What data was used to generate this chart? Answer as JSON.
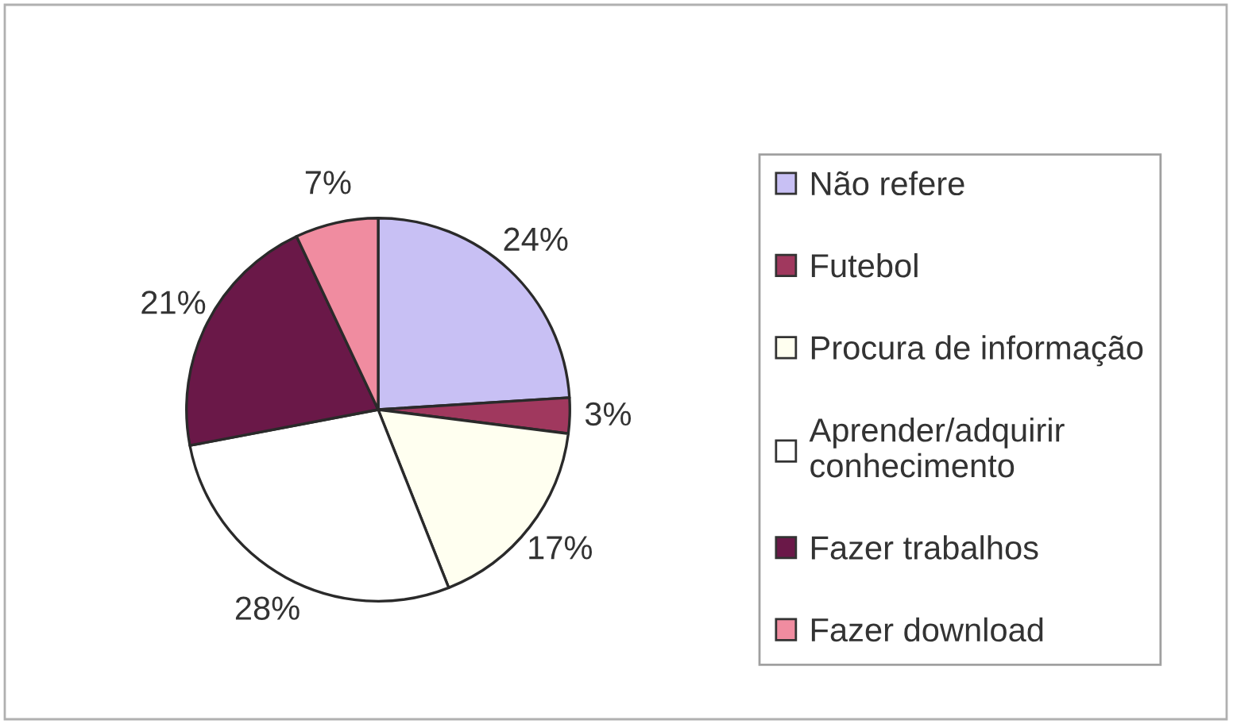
{
  "chart_data": {
    "type": "pie",
    "categories": [
      "Não refere",
      "Futebol",
      "Procura de informação",
      "Aprender/adquirir conhecimento",
      "Fazer trabalhos",
      "Fazer download"
    ],
    "values": [
      24,
      3,
      17,
      28,
      21,
      7
    ],
    "colors": [
      "#c8c0f4",
      "#a0385e",
      "#fffff0",
      "#ffffff",
      "#6a1848",
      "#f08ca0"
    ],
    "value_labels": [
      "24%",
      "3%",
      "17%",
      "28%",
      "21%",
      "7%"
    ],
    "legend": "right"
  }
}
